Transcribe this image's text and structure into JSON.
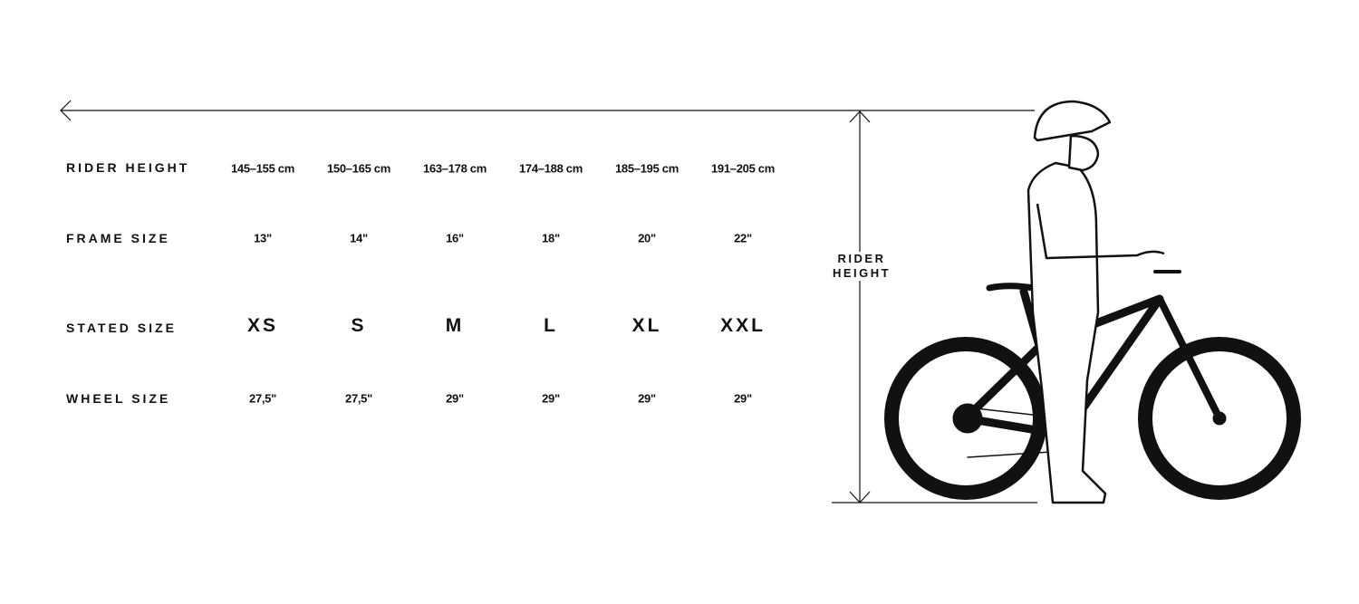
{
  "rows": [
    {
      "label": "RIDER HEIGHT",
      "values": [
        "145–155 cm",
        "150–165 cm",
        "163–178 cm",
        "174–188 cm",
        "185–195 cm",
        "191–205 cm"
      ]
    },
    {
      "label": "FRAME SIZE",
      "values": [
        "13\"",
        "14\"",
        "16\"",
        "18\"",
        "20\"",
        "22\""
      ]
    },
    {
      "label": "STATED SIZE",
      "values": [
        "XS",
        "S",
        "M",
        "L",
        "XL",
        "XXL"
      ]
    },
    {
      "label": "WHEEL SIZE",
      "values": [
        "27,5\"",
        "27,5\"",
        "29\"",
        "29\"",
        "29\"",
        "29\""
      ]
    }
  ],
  "illustration": {
    "label_line1": "RIDER",
    "label_line2": "HEIGHT",
    "color": "#111111"
  }
}
